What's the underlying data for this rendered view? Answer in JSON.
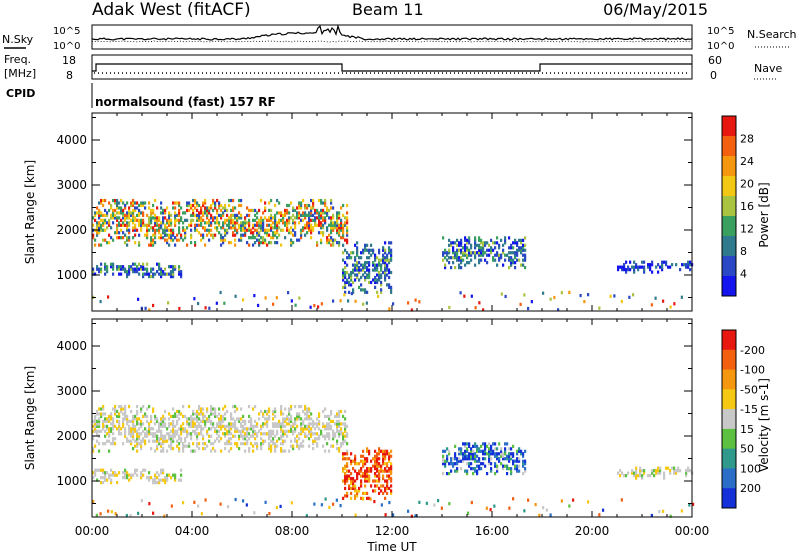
{
  "header": {
    "station": "Adak West (fitACF)",
    "beam": "Beam 11",
    "date": "06/May/2015"
  },
  "noise_panel": {
    "left_label": "N.Sky",
    "right_label": "N.Search",
    "left_ticks": [
      "10^5",
      "10^0"
    ],
    "right_ticks": [
      "10^5",
      "10^0"
    ]
  },
  "freq_panel": {
    "left_label_1": "Freq.",
    "left_label_2": "[MHz]",
    "right_label": "Nave",
    "left_ticks": [
      "18",
      "8"
    ],
    "right_ticks": [
      "60",
      "0"
    ]
  },
  "cpid": {
    "label": "CPID",
    "program": "normalsound (fast) 157 RF"
  },
  "x_axis": {
    "label": "Time UT",
    "ticks": [
      "00:00",
      "04:00",
      "08:00",
      "12:00",
      "16:00",
      "20:00",
      "00:00"
    ]
  },
  "chart_data": [
    {
      "type": "heatmap",
      "panel": "power",
      "xlabel": "Time UT",
      "ylabel": "Slant Range [km]",
      "y_ticks": [
        "1000",
        "2000",
        "3000",
        "4000"
      ],
      "ylim": [
        200,
        4600
      ],
      "xlim_hours": [
        0,
        24
      ],
      "colorbar": {
        "label": "Power [dB]",
        "ticks": [
          "4",
          "8",
          "12",
          "16",
          "20",
          "24",
          "28"
        ],
        "colors": [
          "#1414ee",
          "#2a48c6",
          "#2f7a8c",
          "#3aa060",
          "#a8c440",
          "#f2c814",
          "#f59810",
          "#f26010",
          "#e81810"
        ]
      },
      "regions": [
        {
          "name": "upper band",
          "t": [
            0.0,
            10.2
          ],
          "range_km": [
            1700,
            2700
          ],
          "level": "mixed"
        },
        {
          "name": "lower band",
          "t": [
            0.0,
            3.6
          ],
          "range_km": [
            1000,
            1300
          ],
          "level": "mid"
        },
        {
          "name": "post-midnight patch",
          "t": [
            10.0,
            12.0
          ],
          "range_km": [
            650,
            1800
          ],
          "level": "mid"
        },
        {
          "name": "afternoon patch",
          "t": [
            14.0,
            17.3
          ],
          "range_km": [
            1200,
            1900
          ],
          "level": "mid"
        },
        {
          "name": "evening band",
          "t": [
            21.0,
            24.0
          ],
          "range_km": [
            1100,
            1350
          ],
          "level": "low"
        }
      ]
    },
    {
      "type": "heatmap",
      "panel": "velocity",
      "xlabel": "Time UT",
      "ylabel": "Slant Range [km]",
      "y_ticks": [
        "1000",
        "2000",
        "3000",
        "4000"
      ],
      "ylim": [
        200,
        4600
      ],
      "xlim_hours": [
        0,
        24
      ],
      "colorbar": {
        "label": "Velocity [m s-1]",
        "ticks": [
          "200",
          "100",
          "50",
          "15",
          "-15",
          "-50",
          "-100",
          "-200"
        ],
        "colors": [
          "#1430d8",
          "#2a6ec8",
          "#2f9a8c",
          "#5cc040",
          "#c8c8c8",
          "#f5c814",
          "#f59810",
          "#f26010",
          "#e81810"
        ]
      },
      "regions": [
        {
          "name": "upper band",
          "t": [
            0.0,
            10.2
          ],
          "range_km": [
            1700,
            2700
          ],
          "level": "near zero"
        },
        {
          "name": "lower band",
          "t": [
            0.0,
            3.6
          ],
          "range_km": [
            1000,
            1300
          ],
          "level": "near zero"
        },
        {
          "name": "post-midnight patch",
          "t": [
            10.0,
            12.0
          ],
          "range_km": [
            650,
            1800
          ],
          "level": "negative"
        },
        {
          "name": "afternoon patch",
          "t": [
            14.0,
            17.3
          ],
          "range_km": [
            1200,
            1900
          ],
          "level": "positive"
        },
        {
          "name": "evening band",
          "t": [
            21.0,
            24.0
          ],
          "range_km": [
            1100,
            1350
          ],
          "level": "near zero"
        }
      ]
    }
  ]
}
